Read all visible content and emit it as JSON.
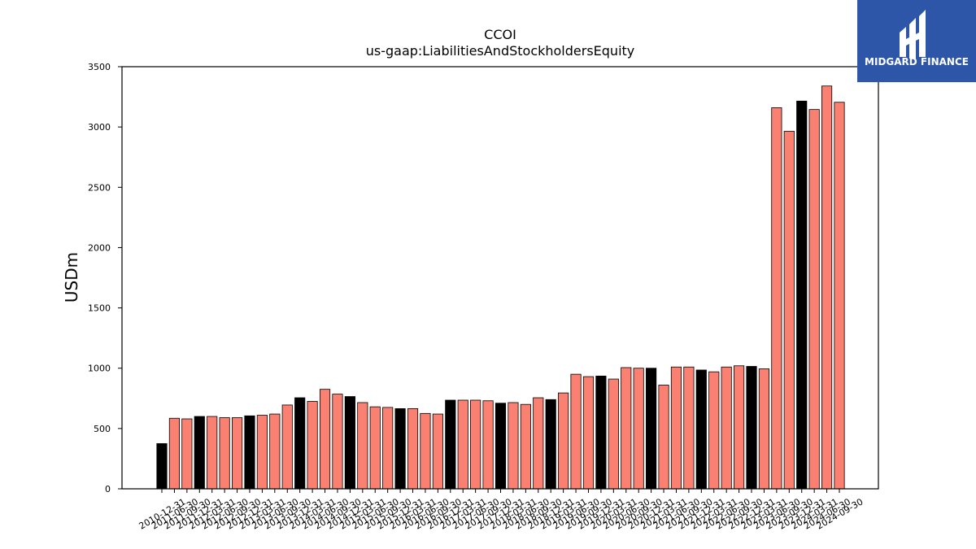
{
  "chart_data": {
    "type": "bar",
    "title": "CCOI",
    "subtitle": "us-gaap:LiabilitiesAndStockholdersEquity",
    "xlabel": "",
    "ylabel": "USDm",
    "ylim": [
      0,
      3500
    ],
    "yticks": [
      0,
      500,
      1000,
      1500,
      2000,
      2500,
      3000,
      3500
    ],
    "grid": false,
    "colors": {
      "quarter": "#fa8072",
      "year_end": "#000000",
      "edge": "#000000"
    },
    "categories": [
      "2010-12-31",
      "2011-06-30",
      "2011-09-30",
      "2011-12-31",
      "2012-03-31",
      "2012-06-30",
      "2012-09-30",
      "2012-12-31",
      "2013-03-31",
      "2013-06-30",
      "2013-09-30",
      "2013-12-31",
      "2014-03-31",
      "2014-06-30",
      "2014-09-30",
      "2014-12-31",
      "2015-03-31",
      "2015-06-30",
      "2015-09-30",
      "2015-12-31",
      "2016-03-31",
      "2016-06-30",
      "2016-09-30",
      "2016-12-31",
      "2017-03-31",
      "2017-06-30",
      "2017-09-30",
      "2017-12-31",
      "2018-03-31",
      "2018-06-30",
      "2018-09-30",
      "2018-12-31",
      "2019-03-31",
      "2019-06-30",
      "2019-09-30",
      "2019-12-31",
      "2020-03-31",
      "2020-06-30",
      "2020-09-30",
      "2020-12-31",
      "2021-03-31",
      "2021-06-30",
      "2021-09-30",
      "2021-12-31",
      "2022-03-31",
      "2022-06-30",
      "2022-09-30",
      "2022-12-31",
      "2023-03-31",
      "2023-06-30",
      "2023-09-30",
      "2023-12-31",
      "2024-03-31",
      "2024-06-30",
      "2024-09-30"
    ],
    "values": [
      375,
      585,
      580,
      600,
      600,
      590,
      590,
      605,
      610,
      620,
      695,
      755,
      725,
      825,
      785,
      765,
      715,
      680,
      675,
      665,
      665,
      625,
      620,
      735,
      735,
      735,
      730,
      710,
      715,
      700,
      755,
      740,
      795,
      950,
      930,
      935,
      910,
      1005,
      1000,
      1000,
      860,
      1010,
      1010,
      985,
      970,
      1010,
      1020,
      1015,
      995,
      3160,
      2965,
      3215,
      3145,
      3340,
      3205
    ],
    "highlight": [
      true,
      false,
      false,
      true,
      false,
      false,
      false,
      true,
      false,
      false,
      false,
      true,
      false,
      false,
      false,
      true,
      false,
      false,
      false,
      true,
      false,
      false,
      false,
      true,
      false,
      false,
      false,
      true,
      false,
      false,
      false,
      true,
      false,
      false,
      false,
      true,
      false,
      false,
      false,
      true,
      false,
      false,
      false,
      true,
      false,
      false,
      false,
      true,
      false,
      false,
      false,
      true,
      false,
      false,
      false
    ]
  },
  "logo": {
    "text": "MIDGARD FINANCE",
    "background": "#2d56a8",
    "foreground": "#ffffff"
  }
}
